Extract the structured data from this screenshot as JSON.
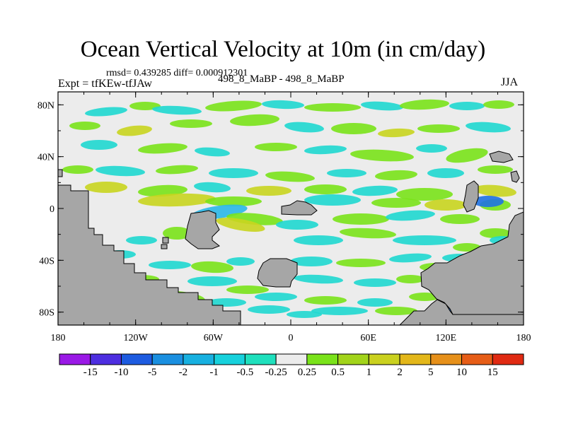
{
  "title": "Ocean Vertical Velocity at 10m (in cm/day)",
  "stats_line": "rmsd= 0.439285 diff= 0.000912301",
  "expt_line": "Expt = tfKEw-tfJAw",
  "case_line": "498_8_MaBP - 498_8_MaBP",
  "season": "JJA",
  "axes": {
    "x_ticks": [
      "180",
      "120W",
      "60W",
      "0",
      "60E",
      "120E",
      "180"
    ],
    "y_ticks": [
      "80N",
      "40N",
      "0",
      "40S",
      "80S"
    ]
  },
  "colorbar": {
    "labels": [
      "-15",
      "-10",
      "-5",
      "-2",
      "-1",
      "-0.5",
      "-0.25",
      "0.25",
      "0.5",
      "1",
      "2",
      "5",
      "10",
      "15"
    ],
    "colors": [
      "#9a19e6",
      "#4d2ee0",
      "#1d5be0",
      "#1a8fe0",
      "#17b0e0",
      "#17d1dc",
      "#1fe0bd",
      "#ececec",
      "#7ae31a",
      "#a2d41a",
      "#cad11f",
      "#e3b71a",
      "#e6901a",
      "#e65d17",
      "#e02a12"
    ]
  },
  "colors": {
    "land": "#a6a6a6",
    "neutral": "#ececec",
    "cyan": "#1fd8d0",
    "teal": "#2bb8e8",
    "blue": "#1f72e3",
    "green": "#7ae31a",
    "yellow": "#c9d51f",
    "orange": "#e39a1a"
  },
  "chart_data": {
    "type": "heatmap",
    "title": "Ocean Vertical Velocity at 10m (in cm/day)",
    "xlabel": "",
    "ylabel": "",
    "xlim": [
      -180,
      180
    ],
    "ylim": [
      -90,
      90
    ],
    "x_ticks": [
      -180,
      -120,
      -60,
      0,
      60,
      120,
      180
    ],
    "y_ticks": [
      80,
      40,
      0,
      -40,
      -80
    ],
    "levels": [
      -15,
      -10,
      -5,
      -2,
      -1,
      -0.5,
      -0.25,
      0.25,
      0.5,
      1,
      2,
      5,
      10,
      15
    ],
    "grid": false,
    "legend": "bottom"
  }
}
